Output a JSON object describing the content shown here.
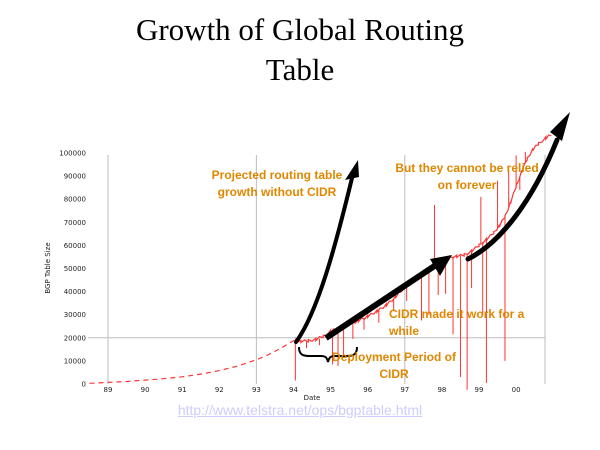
{
  "slide": {
    "title": "Growth of Global Routing Table",
    "source_link": "http://www.telstra.net/ops/bgptable.html"
  },
  "annotations": {
    "projected": "Projected routing table growth without CIDR",
    "cannot_rely": "But they cannot be relied on forever",
    "cidr_work": "CIDR made it work for a while",
    "deployment": "Deployment Period of CIDR"
  },
  "colors": {
    "annotation_orange": "#e08700",
    "series_red": "#ff3333",
    "grid_gray": "#bdbdbd",
    "tick_text": "#222222",
    "link_lavender": "#ccccff",
    "arrow_black": "#000000"
  },
  "chart_data": {
    "type": "line",
    "title": "",
    "xlabel": "Date",
    "ylabel": "BGP Table Size",
    "x_ticks": [
      "89",
      "90",
      "91",
      "92",
      "93",
      "94",
      "95",
      "96",
      "97",
      "98",
      "99",
      "00"
    ],
    "x_tick_years": [
      89,
      90,
      91,
      92,
      93,
      94,
      95,
      96,
      97,
      98,
      99,
      100
    ],
    "y_ticks": [
      "0",
      "10000",
      "20000",
      "30000",
      "40000",
      "50000",
      "60000",
      "70000",
      "80000",
      "90000",
      "100000"
    ],
    "y_tick_values": [
      0,
      10000,
      20000,
      30000,
      40000,
      50000,
      60000,
      70000,
      80000,
      90000,
      100000
    ],
    "xlim": [
      88.4,
      101
    ],
    "ylim": [
      0,
      100000
    ],
    "grid_x_years": [
      89,
      93,
      97
    ],
    "grid_y_values": [
      20000
    ],
    "legend": "none",
    "series": [
      {
        "name": "BGP routing table size",
        "color": "#ff3333",
        "dashed_until_year": 94,
        "points": [
          [
            88.5,
            300
          ],
          [
            89,
            700
          ],
          [
            89.5,
            1100
          ],
          [
            90,
            1700
          ],
          [
            90.5,
            2300
          ],
          [
            91,
            3100
          ],
          [
            91.5,
            4300
          ],
          [
            92,
            5800
          ],
          [
            92.5,
            7800
          ],
          [
            93,
            10500
          ],
          [
            93.3,
            12500
          ],
          [
            93.6,
            15000
          ],
          [
            93.9,
            17800
          ],
          [
            94.05,
            19200
          ],
          [
            94.2,
            18400
          ],
          [
            94.4,
            18700
          ],
          [
            94.6,
            19300
          ],
          [
            94.8,
            20600
          ],
          [
            95,
            22800
          ],
          [
            95.25,
            24300
          ],
          [
            95.5,
            25900
          ],
          [
            95.75,
            27400
          ],
          [
            96,
            29300
          ],
          [
            96.25,
            31500
          ],
          [
            96.5,
            34200
          ],
          [
            96.75,
            37600
          ],
          [
            97,
            42000
          ],
          [
            97.25,
            45200
          ],
          [
            97.5,
            48500
          ],
          [
            97.75,
            51400
          ],
          [
            98,
            53600
          ],
          [
            98.2,
            54800
          ],
          [
            98.4,
            55300
          ],
          [
            98.6,
            55900
          ],
          [
            98.8,
            57500
          ],
          [
            99,
            60000
          ],
          [
            99.2,
            62500
          ],
          [
            99.4,
            65500
          ],
          [
            99.55,
            68500
          ],
          [
            99.7,
            72500
          ],
          [
            99.85,
            78500
          ],
          [
            100,
            85500
          ],
          [
            100.15,
            92000
          ],
          [
            100.3,
            97500
          ],
          [
            100.45,
            101500
          ],
          [
            100.6,
            104000
          ],
          [
            100.8,
            106500
          ],
          [
            100.95,
            108000
          ]
        ]
      }
    ],
    "spikes": [
      [
        94.05,
        19200,
        1500
      ],
      [
        94.35,
        18500,
        15500
      ],
      [
        94.7,
        19600,
        16800
      ],
      [
        95.05,
        23000,
        8500
      ],
      [
        95.2,
        23600,
        7800
      ],
      [
        95.35,
        24200,
        11500
      ],
      [
        95.6,
        26300,
        19500
      ],
      [
        95.9,
        28600,
        23500
      ],
      [
        96.3,
        32000,
        26500
      ],
      [
        96.7,
        36800,
        31500
      ],
      [
        97.05,
        42500,
        36000
      ],
      [
        97.45,
        47800,
        27500
      ],
      [
        97.65,
        50200,
        30000
      ],
      [
        97.8,
        52500,
        77500
      ],
      [
        97.9,
        52800,
        38500
      ],
      [
        98.1,
        54300,
        39000
      ],
      [
        98.3,
        55100,
        21500
      ],
      [
        98.5,
        55600,
        3000
      ],
      [
        98.68,
        56500,
        -2500
      ],
      [
        98.8,
        57500,
        41500
      ],
      [
        99.05,
        60500,
        81000
      ],
      [
        99.1,
        61500,
        29500
      ],
      [
        99.2,
        62500,
        500
      ],
      [
        99.5,
        67000,
        88000
      ],
      [
        99.7,
        72500,
        10000
      ],
      [
        99.8,
        76500,
        93000
      ],
      [
        100.0,
        85500,
        99000
      ],
      [
        100.1,
        90000,
        84000
      ],
      [
        100.25,
        95500,
        100500
      ]
    ]
  }
}
